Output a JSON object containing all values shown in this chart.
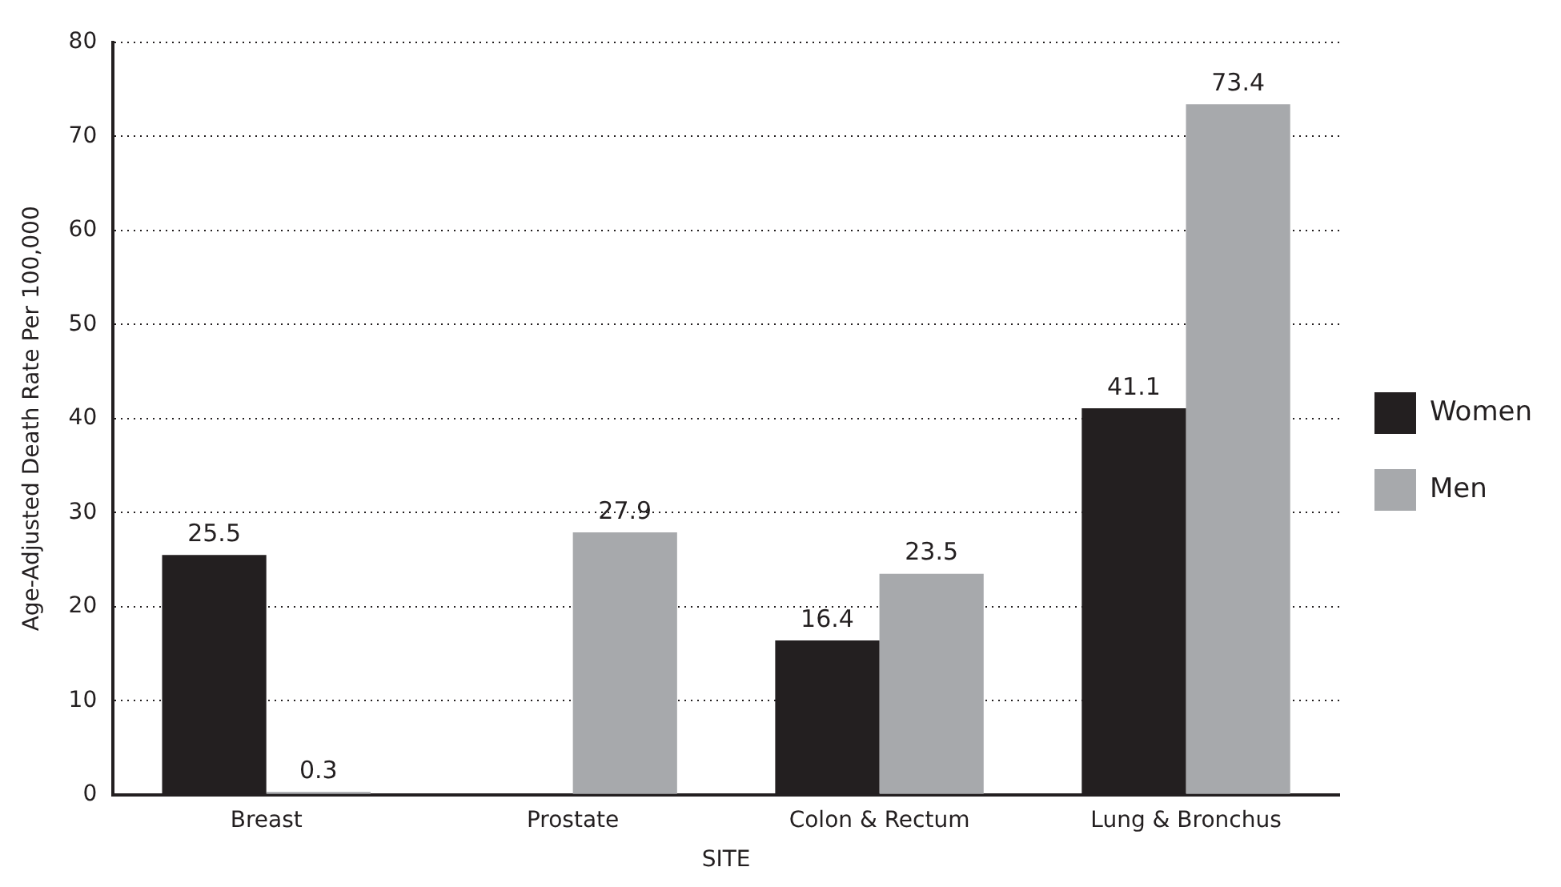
{
  "chart_data": {
    "type": "bar",
    "xlabel": "SITE",
    "ylabel": "Age-Adjusted Death Rate Per 100,000",
    "categories": [
      "Breast",
      "Prostate",
      "Colon & Rectum",
      "Lung & Bronchus"
    ],
    "series": [
      {
        "name": "Women",
        "color": "#231f20",
        "values": [
          25.5,
          null,
          16.4,
          41.1
        ]
      },
      {
        "name": "Men",
        "color": "#a7a9ac",
        "values": [
          0.3,
          27.9,
          23.5,
          73.4
        ]
      }
    ],
    "ylim": [
      0,
      80
    ],
    "yticks": [
      0,
      10,
      20,
      30,
      40,
      50,
      60,
      70,
      80
    ],
    "grid": "y",
    "legend": "right",
    "data_labels": true
  }
}
